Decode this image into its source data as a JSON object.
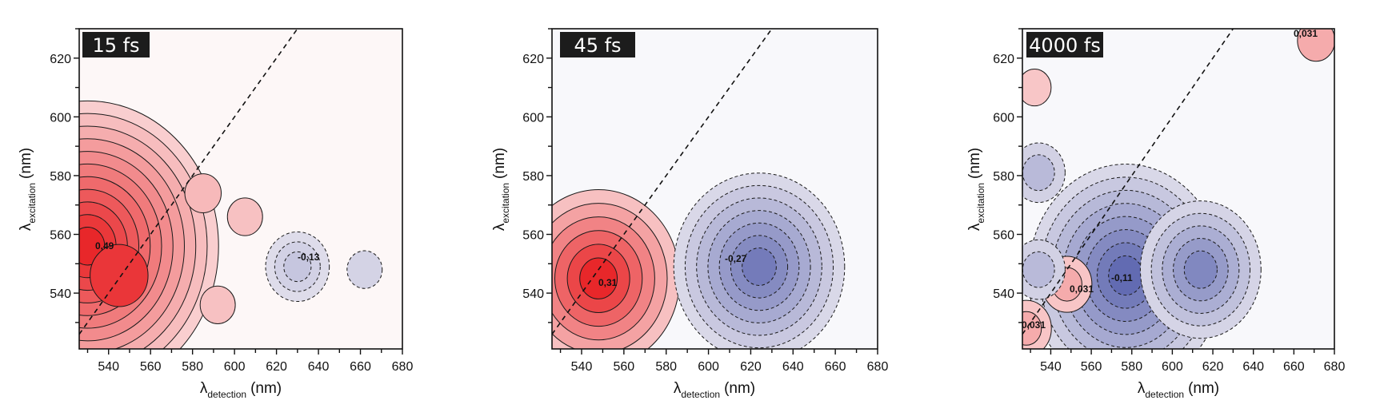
{
  "chart_data": [
    {
      "type": "heatmap",
      "subtype": "contour",
      "panel_label": "15 fs",
      "xlabel_main": "λ",
      "xlabel_sub": "detection",
      "xlabel_unit": "(nm)",
      "ylabel_main": "λ",
      "ylabel_sub": "excitation",
      "ylabel_unit": "(nm)",
      "xlim": [
        526,
        680
      ],
      "ylim": [
        521,
        630
      ],
      "xticks": [
        "540",
        "560",
        "580",
        "600",
        "620",
        "640",
        "660",
        "680"
      ],
      "xtick_values": [
        540,
        560,
        580,
        600,
        620,
        640,
        660,
        680
      ],
      "yticks": [
        "540",
        "560",
        "580",
        "600",
        "620"
      ],
      "ytick_values": [
        540,
        560,
        580,
        600,
        620
      ],
      "diagonal": {
        "from": [
          526,
          526
        ],
        "to": [
          630,
          630
        ],
        "style": "dashed"
      },
      "peaks": [
        {
          "x": 530,
          "y": 556,
          "value": 0.49,
          "label": "0,49",
          "sign": "positive",
          "levels": 11
        },
        {
          "x": 545,
          "y": 546,
          "value": 0.45,
          "sign": "positive",
          "levels": 1
        },
        {
          "x": 585,
          "y": 574,
          "value": 0.1,
          "sign": "positive",
          "levels": 1
        },
        {
          "x": 605,
          "y": 566,
          "value": 0.08,
          "sign": "positive",
          "levels": 1
        },
        {
          "x": 592,
          "y": 536,
          "value": 0.08,
          "sign": "positive",
          "levels": 1
        },
        {
          "x": 630,
          "y": 549,
          "value": -0.13,
          "label": "-0,13",
          "sign": "negative",
          "levels": 3
        },
        {
          "x": 662,
          "y": 548,
          "value": -0.08,
          "sign": "negative",
          "levels": 1
        }
      ]
    },
    {
      "type": "heatmap",
      "subtype": "contour",
      "panel_label": "45 fs",
      "xlabel_main": "λ",
      "xlabel_sub": "detection",
      "xlabel_unit": "(nm)",
      "ylabel_main": "λ",
      "ylabel_sub": "excitation",
      "ylabel_unit": "(nm)",
      "xlim": [
        526,
        680
      ],
      "ylim": [
        521,
        630
      ],
      "xticks": [
        "540",
        "560",
        "580",
        "600",
        "620",
        "640",
        "660",
        "680"
      ],
      "xtick_values": [
        540,
        560,
        580,
        600,
        620,
        640,
        660,
        680
      ],
      "yticks": [
        "540",
        "560",
        "580",
        "600",
        "620"
      ],
      "ytick_values": [
        540,
        560,
        580,
        600,
        620
      ],
      "diagonal": {
        "from": [
          526,
          526
        ],
        "to": [
          630,
          630
        ],
        "style": "dashed"
      },
      "peaks": [
        {
          "x": 548,
          "y": 545,
          "value": 0.31,
          "label": "0,31",
          "sign": "positive",
          "levels": 6
        },
        {
          "x": 624,
          "y": 549,
          "value": -0.27,
          "label": "-0,27",
          "sign": "negative",
          "levels": 7
        }
      ]
    },
    {
      "type": "heatmap",
      "subtype": "contour",
      "panel_label": "4000 fs",
      "xlabel_main": "λ",
      "xlabel_sub": "detection",
      "xlabel_unit": "(nm)",
      "ylabel_main": "λ",
      "ylabel_sub": "excitation",
      "ylabel_unit": "(nm)",
      "xlim": [
        526,
        680
      ],
      "ylim": [
        521,
        630
      ],
      "xticks": [
        "540",
        "560",
        "580",
        "600",
        "620",
        "640",
        "660",
        "680"
      ],
      "xtick_values": [
        540,
        560,
        580,
        600,
        620,
        640,
        660,
        680
      ],
      "yticks": [
        "540",
        "560",
        "580",
        "600",
        "620"
      ],
      "ytick_values": [
        540,
        560,
        580,
        600,
        620
      ],
      "diagonal": {
        "from": [
          526,
          526
        ],
        "to": [
          630,
          630
        ],
        "style": "dashed"
      },
      "peaks": [
        {
          "x": 577,
          "y": 546,
          "value": -0.11,
          "label": "-0,11",
          "sign": "negative",
          "levels": 8
        },
        {
          "x": 614,
          "y": 548,
          "value": -0.085,
          "sign": "negative",
          "levels": 5
        },
        {
          "x": 548,
          "y": 543,
          "value": 0.031,
          "label": "0,031",
          "sign": "positive",
          "levels": 2
        },
        {
          "x": 528,
          "y": 528,
          "value": 0.031,
          "label": "0,031",
          "sign": "positive",
          "levels": 2
        },
        {
          "x": 671,
          "y": 626,
          "value": 0.031,
          "label": "0,031",
          "sign": "positive",
          "levels": 1
        },
        {
          "x": 534,
          "y": 581,
          "value": -0.04,
          "sign": "negative",
          "levels": 2
        },
        {
          "x": 534,
          "y": 548,
          "value": -0.04,
          "sign": "negative",
          "levels": 2
        },
        {
          "x": 532,
          "y": 610,
          "value": 0.015,
          "sign": "positive",
          "levels": 1
        }
      ]
    }
  ],
  "colors": {
    "positive_max": "#e8272a",
    "negative_max": "#5a64ae",
    "contour_line": "#1a1a1a",
    "label_background": "#1c1c1c"
  }
}
